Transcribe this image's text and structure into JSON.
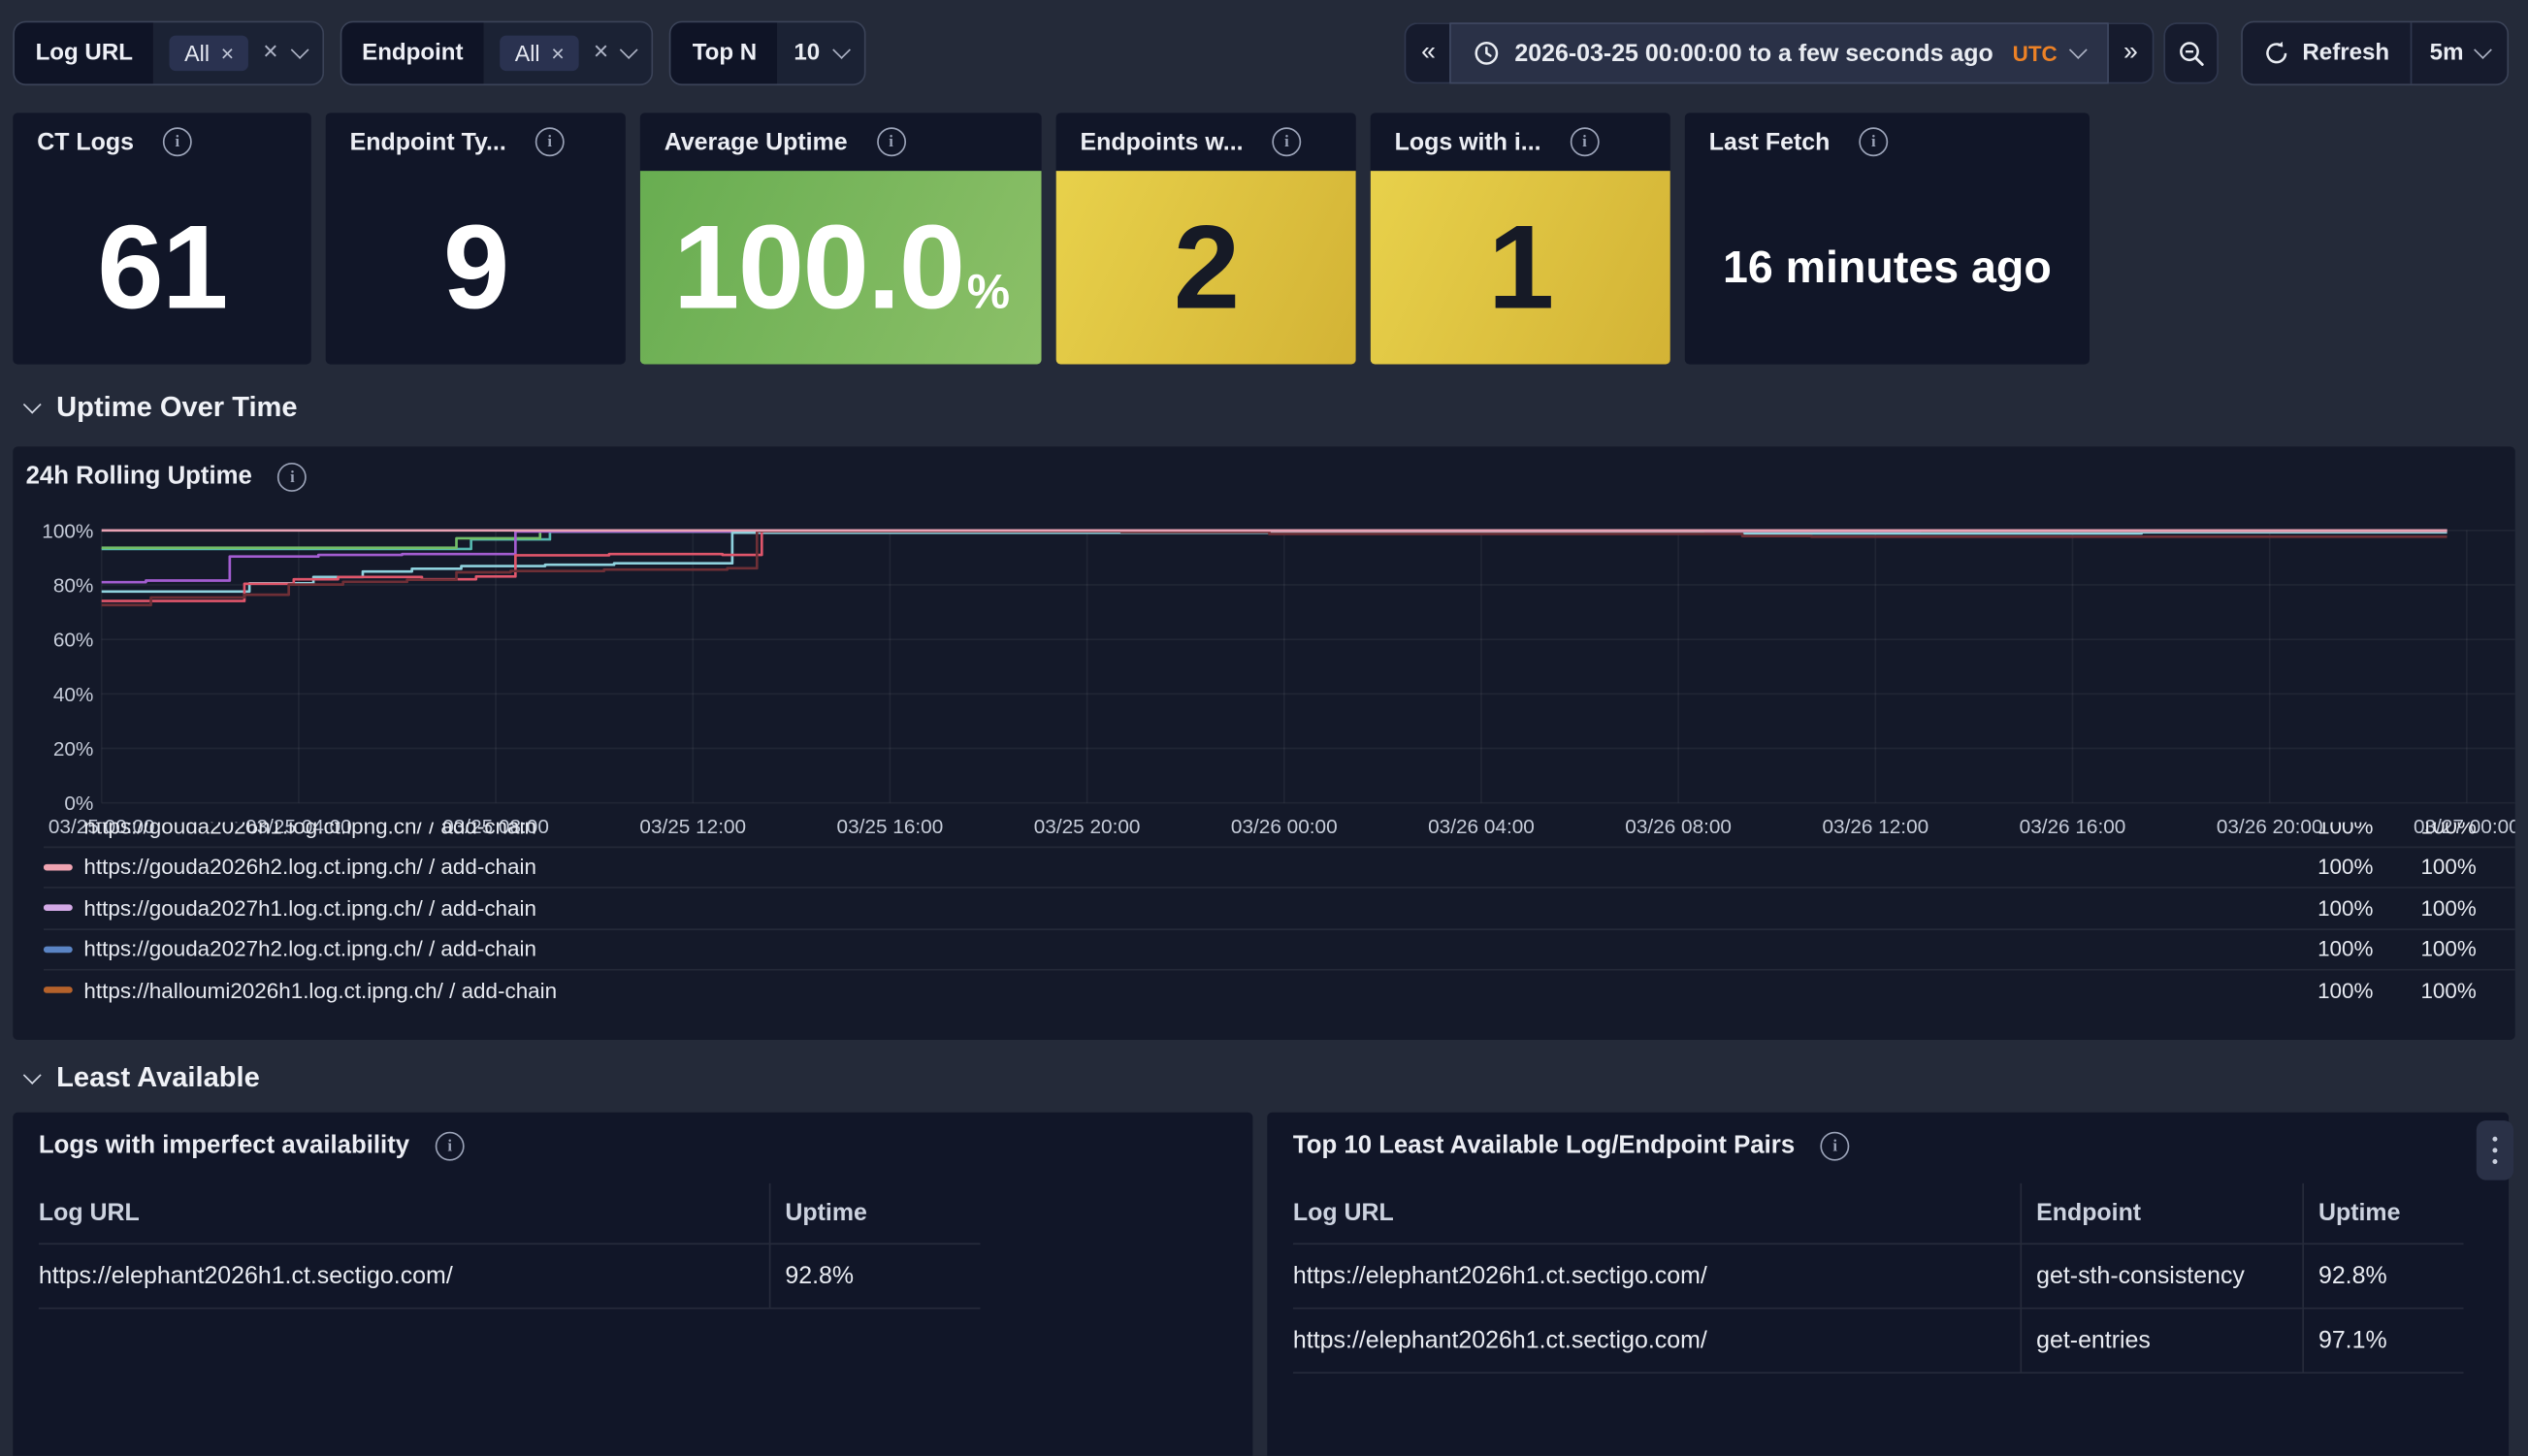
{
  "toolbar": {
    "filters": [
      {
        "label": "Log URL",
        "selected": "All",
        "remove_icon": "×",
        "clear_icon": "×"
      },
      {
        "label": "Endpoint",
        "selected": "All",
        "remove_icon": "×",
        "clear_icon": "×"
      }
    ],
    "top_n": {
      "label": "Top N",
      "value": "10"
    },
    "time_picker": {
      "prev": "«",
      "range": "2026-03-25 00:00:00 to a few seconds ago",
      "timezone": "UTC",
      "next": "»",
      "refresh_label": "Refresh",
      "interval": "5m"
    }
  },
  "stats": [
    {
      "title": "CT Logs",
      "value": "61"
    },
    {
      "title": "Endpoint Ty...",
      "value": "9"
    },
    {
      "title": "Average Uptime",
      "value": "100.0",
      "suffix": "%"
    },
    {
      "title": "Endpoints w...",
      "value": "2"
    },
    {
      "title": "Logs with i...",
      "value": "1"
    },
    {
      "title": "Last Fetch",
      "value": "16 minutes ago"
    }
  ],
  "sections": {
    "uptime_over_time": "Uptime Over Time",
    "least_available": "Least Available"
  },
  "uptime_panel": {
    "title": "24h Rolling Uptime"
  },
  "chart_data": {
    "type": "line",
    "title": "24h Rolling Uptime",
    "x_unit": "hours since 2026-03-25 00:00 UTC",
    "ylim": [
      0,
      100
    ],
    "grid": true,
    "legend_position": "bottom-table",
    "x_ticks": [
      "03/25 00:00",
      "03/25 04:00",
      "03/25 08:00",
      "03/25 12:00",
      "03/25 16:00",
      "03/25 20:00",
      "03/26 00:00",
      "03/26 04:00",
      "03/26 08:00",
      "03/26 12:00",
      "03/26 16:00",
      "03/26 20:00",
      "03/27 00:00"
    ],
    "y_ticks": [
      {
        "v": 100,
        "label": "100%"
      },
      {
        "v": 80,
        "label": "80%"
      },
      {
        "v": 60,
        "label": "60%"
      },
      {
        "v": 40,
        "label": "40%"
      },
      {
        "v": 20,
        "label": "20%"
      },
      {
        "v": 0,
        "label": "0%"
      }
    ],
    "series": [
      {
        "name": "teal",
        "color": "#56b8b0",
        "points": [
          [
            0,
            93.2
          ],
          [
            7.5,
            93.2
          ],
          [
            7.5,
            96.7
          ],
          [
            9.1,
            96.7
          ],
          [
            9.1,
            99.5
          ],
          [
            18,
            99.5
          ],
          [
            18,
            99.8
          ],
          [
            47.6,
            99.8
          ]
        ]
      },
      {
        "name": "green",
        "color": "#73bf69",
        "points": [
          [
            0,
            93.6
          ],
          [
            7.2,
            93.6
          ],
          [
            7.2,
            97.1
          ],
          [
            8.9,
            97.1
          ],
          [
            8.9,
            99.8
          ],
          [
            47.6,
            99.8
          ]
        ]
      },
      {
        "name": "purple",
        "color": "#a35dd1",
        "points": [
          [
            0,
            81
          ],
          [
            0.9,
            81
          ],
          [
            0.9,
            81.6
          ],
          [
            2.6,
            81.6
          ],
          [
            2.6,
            90.4
          ],
          [
            4.4,
            90.4
          ],
          [
            4.4,
            91
          ],
          [
            6.1,
            91
          ],
          [
            6.1,
            91.3
          ],
          [
            8.4,
            91.3
          ],
          [
            8.4,
            99.6
          ],
          [
            36.9,
            99.6
          ],
          [
            36.9,
            100
          ],
          [
            47.6,
            100
          ]
        ]
      },
      {
        "name": "light-cyan",
        "color": "#8fd2de",
        "points": [
          [
            0,
            77.6
          ],
          [
            3,
            77.6
          ],
          [
            3,
            80.6
          ],
          [
            4.3,
            80.6
          ],
          [
            4.3,
            82.9
          ],
          [
            5.3,
            82.9
          ],
          [
            5.3,
            84.9
          ],
          [
            6.3,
            84.9
          ],
          [
            6.3,
            85.9
          ],
          [
            7.3,
            85.9
          ],
          [
            7.3,
            86.9
          ],
          [
            9,
            86.9
          ],
          [
            9,
            87.4
          ],
          [
            10.4,
            87.4
          ],
          [
            10.4,
            87.9
          ],
          [
            12.8,
            87.9
          ],
          [
            12.8,
            99.2
          ],
          [
            32.5,
            99.2
          ],
          [
            32.5,
            98.9
          ],
          [
            41.4,
            98.9
          ],
          [
            41.4,
            99.3
          ],
          [
            47.6,
            99.3
          ]
        ]
      },
      {
        "name": "red",
        "color": "#e0566b",
        "points": [
          [
            0,
            74.1
          ],
          [
            2.9,
            74.1
          ],
          [
            2.9,
            80.4
          ],
          [
            3.9,
            80.4
          ],
          [
            3.9,
            82.1
          ],
          [
            4.8,
            82.1
          ],
          [
            4.8,
            82.9
          ],
          [
            6.5,
            82.9
          ],
          [
            6.5,
            82.1
          ],
          [
            7.6,
            82.1
          ],
          [
            7.6,
            83.1
          ],
          [
            8.4,
            83.1
          ],
          [
            8.4,
            90.9
          ],
          [
            10.3,
            90.9
          ],
          [
            10.3,
            91.3
          ],
          [
            12.6,
            91.3
          ],
          [
            12.6,
            91
          ],
          [
            13.4,
            91
          ],
          [
            13.4,
            99.9
          ],
          [
            47.6,
            99.9
          ]
        ]
      },
      {
        "name": "dark-red",
        "color": "#6e2f36",
        "points": [
          [
            0,
            72.6
          ],
          [
            1,
            72.6
          ],
          [
            1,
            75.4
          ],
          [
            2.9,
            75.4
          ],
          [
            2.9,
            76.4
          ],
          [
            3.8,
            76.4
          ],
          [
            3.8,
            80.1
          ],
          [
            4.9,
            80.1
          ],
          [
            4.9,
            81.1
          ],
          [
            6.2,
            81.1
          ],
          [
            6.2,
            81.9
          ],
          [
            7.2,
            81.9
          ],
          [
            7.2,
            84.6
          ],
          [
            8.3,
            84.6
          ],
          [
            8.3,
            85.1
          ],
          [
            10.2,
            85.1
          ],
          [
            10.2,
            85.6
          ],
          [
            12.7,
            85.6
          ],
          [
            12.7,
            86.1
          ],
          [
            13.3,
            86.1
          ],
          [
            13.3,
            99.7
          ],
          [
            20.7,
            99.7
          ],
          [
            20.7,
            99.4
          ],
          [
            23.7,
            99.4
          ],
          [
            23.7,
            98.7
          ],
          [
            33.3,
            98.7
          ],
          [
            33.3,
            97.9
          ],
          [
            34.7,
            97.9
          ],
          [
            34.7,
            97.7
          ],
          [
            47.6,
            97.7
          ]
        ]
      },
      {
        "name": "pink",
        "color": "#e8a2b4",
        "points": [
          [
            0,
            100
          ],
          [
            47.6,
            100
          ]
        ]
      }
    ]
  },
  "legend": {
    "clipped": {
      "label": "https://gouda2026h1.log.ct.ipng.ch/ / add-chain",
      "v1": "100%",
      "v2": "100%"
    },
    "rows": [
      {
        "color": "#efa3b1",
        "label": "https://gouda2026h2.log.ct.ipng.ch/ / add-chain",
        "v1": "100%",
        "v2": "100%"
      },
      {
        "color": "#d3a9e6",
        "label": "https://gouda2027h1.log.ct.ipng.ch/ / add-chain",
        "v1": "100%",
        "v2": "100%"
      },
      {
        "color": "#5a84c4",
        "label": "https://gouda2027h2.log.ct.ipng.ch/ / add-chain",
        "v1": "100%",
        "v2": "100%"
      },
      {
        "color": "#b5622b",
        "label": "https://halloumi2026h1.log.ct.ipng.ch/ / add-chain",
        "v1": "100%",
        "v2": "100%"
      }
    ]
  },
  "tables": {
    "imperfect": {
      "title": "Logs with imperfect availability",
      "columns": [
        "Log URL",
        "Uptime"
      ],
      "rows": [
        [
          "https://elephant2026h1.ct.sectigo.com/",
          "92.8%"
        ]
      ]
    },
    "top10": {
      "title": "Top 10 Least Available Log/Endpoint Pairs",
      "columns": [
        "Log URL",
        "Endpoint",
        "Uptime"
      ],
      "rows": [
        [
          "https://elephant2026h1.ct.sectigo.com/",
          "get-sth-consistency",
          "92.8%"
        ],
        [
          "https://elephant2026h1.ct.sectigo.com/",
          "get-entries",
          "97.1%"
        ]
      ]
    }
  }
}
